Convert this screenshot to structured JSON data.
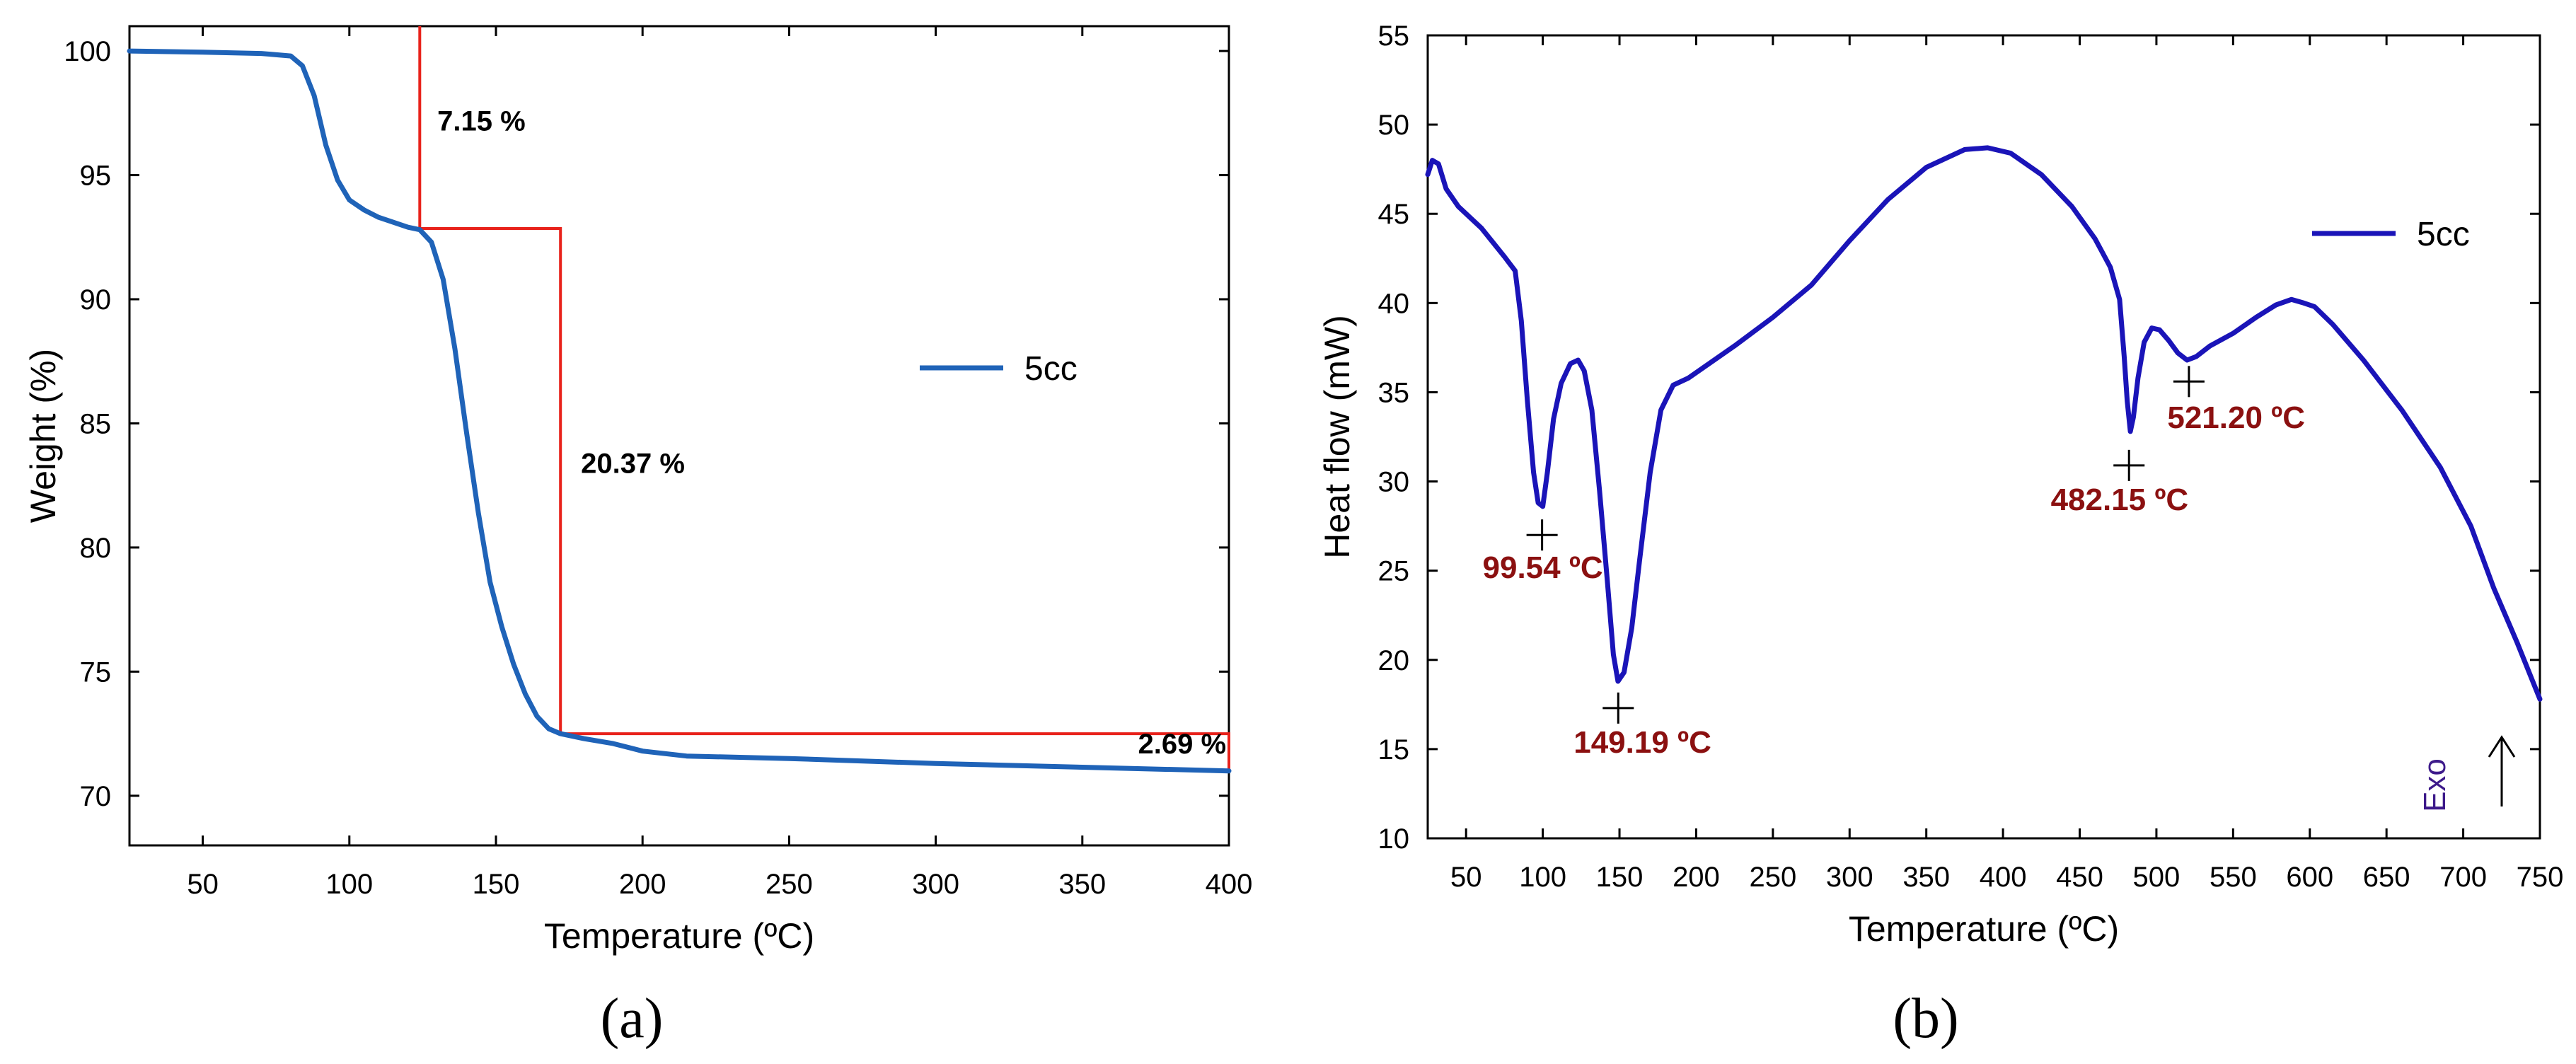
{
  "chart_data": [
    {
      "panel_label": "(a)",
      "type": "line",
      "xlabel": "Temperature (ºC)",
      "ylabel": "Weight (%)",
      "xlim": [
        25,
        400
      ],
      "ylim": [
        68,
        101
      ],
      "x_ticks": [
        50,
        100,
        150,
        200,
        250,
        300,
        350,
        400
      ],
      "y_ticks": [
        70,
        75,
        80,
        85,
        90,
        95,
        100
      ],
      "legend": {
        "label": "5cc",
        "position": "center-right",
        "color": "#1f63b8"
      },
      "series": [
        {
          "name": "5cc",
          "color": "#1f63b8",
          "points": [
            [
              25,
              100
            ],
            [
              50,
              99.95
            ],
            [
              70,
              99.9
            ],
            [
              80,
              99.8
            ],
            [
              84,
              99.4
            ],
            [
              88,
              98.2
            ],
            [
              92,
              96.2
            ],
            [
              96,
              94.8
            ],
            [
              100,
              94.0
            ],
            [
              105,
              93.6
            ],
            [
              110,
              93.3
            ],
            [
              115,
              93.1
            ],
            [
              120,
              92.9
            ],
            [
              124,
              92.8
            ],
            [
              128,
              92.3
            ],
            [
              132,
              90.8
            ],
            [
              136,
              88.0
            ],
            [
              140,
              84.6
            ],
            [
              144,
              81.4
            ],
            [
              148,
              78.6
            ],
            [
              152,
              76.8
            ],
            [
              156,
              75.3
            ],
            [
              160,
              74.1
            ],
            [
              164,
              73.2
            ],
            [
              168,
              72.7
            ],
            [
              172,
              72.5
            ],
            [
              180,
              72.3
            ],
            [
              190,
              72.1
            ],
            [
              200,
              71.8
            ],
            [
              215,
              71.6
            ],
            [
              250,
              71.5
            ],
            [
              300,
              71.3
            ],
            [
              350,
              71.15
            ],
            [
              400,
              71.0
            ]
          ]
        }
      ],
      "annotation_lines_color": "#e8221b",
      "annotations": [
        {
          "text": "7.15 %",
          "x": 130,
          "y": 96.8
        },
        {
          "text": "20.37 %",
          "x": 179,
          "y": 83.0
        },
        {
          "text": "2.69 %",
          "x": 369,
          "y": 71.7
        }
      ],
      "step_lines": [
        [
          [
            124,
            101
          ],
          [
            124,
            92.85
          ],
          [
            172,
            92.85
          ],
          [
            172,
            72.5
          ],
          [
            400,
            72.5
          ],
          [
            400,
            71.0
          ]
        ]
      ]
    },
    {
      "panel_label": "(b)",
      "type": "line",
      "xlabel": "Temperature (ºC)",
      "ylabel": "Heat flow (mW)",
      "xlim": [
        25,
        750
      ],
      "ylim": [
        10,
        55
      ],
      "x_ticks": [
        50,
        100,
        150,
        200,
        250,
        300,
        350,
        400,
        450,
        500,
        550,
        600,
        650,
        700,
        750
      ],
      "y_ticks": [
        10,
        15,
        20,
        25,
        30,
        35,
        40,
        45,
        50,
        55
      ],
      "legend": {
        "label": "5cc",
        "position": "top-right",
        "color": "#1a14b8"
      },
      "exo_label": "Exo",
      "exo_color": "#3d1a8a",
      "series": [
        {
          "name": "5cc",
          "color": "#1a14b8",
          "points": [
            [
              25,
              47.2
            ],
            [
              28,
              48.0
            ],
            [
              32,
              47.8
            ],
            [
              37,
              46.4
            ],
            [
              45,
              45.4
            ],
            [
              60,
              44.2
            ],
            [
              75,
              42.6
            ],
            [
              82,
              41.8
            ],
            [
              86,
              39.0
            ],
            [
              90,
              34.5
            ],
            [
              94,
              30.5
            ],
            [
              97,
              28.8
            ],
            [
              100,
              28.6
            ],
            [
              103,
              30.5
            ],
            [
              107,
              33.5
            ],
            [
              112,
              35.5
            ],
            [
              118,
              36.6
            ],
            [
              123,
              36.8
            ],
            [
              127,
              36.2
            ],
            [
              132,
              34.0
            ],
            [
              137,
              29.5
            ],
            [
              142,
              24.5
            ],
            [
              146,
              20.3
            ],
            [
              149,
              18.8
            ],
            [
              153,
              19.3
            ],
            [
              158,
              21.8
            ],
            [
              163,
              25.5
            ],
            [
              170,
              30.5
            ],
            [
              177,
              34.0
            ],
            [
              185,
              35.4
            ],
            [
              195,
              35.8
            ],
            [
              205,
              36.4
            ],
            [
              225,
              37.6
            ],
            [
              250,
              39.2
            ],
            [
              275,
              41.0
            ],
            [
              300,
              43.5
            ],
            [
              325,
              45.8
            ],
            [
              350,
              47.6
            ],
            [
              375,
              48.6
            ],
            [
              390,
              48.7
            ],
            [
              405,
              48.4
            ],
            [
              425,
              47.2
            ],
            [
              445,
              45.4
            ],
            [
              460,
              43.6
            ],
            [
              470,
              42.0
            ],
            [
              476,
              40.2
            ],
            [
              479,
              37.0
            ],
            [
              481,
              34.5
            ],
            [
              483,
              32.8
            ],
            [
              485,
              33.6
            ],
            [
              488,
              35.8
            ],
            [
              492,
              37.8
            ],
            [
              497,
              38.6
            ],
            [
              502,
              38.5
            ],
            [
              508,
              37.9
            ],
            [
              514,
              37.2
            ],
            [
              520,
              36.8
            ],
            [
              526,
              37.0
            ],
            [
              535,
              37.6
            ],
            [
              550,
              38.3
            ],
            [
              565,
              39.2
            ],
            [
              578,
              39.9
            ],
            [
              588,
              40.2
            ],
            [
              596,
              40.0
            ],
            [
              603,
              39.8
            ],
            [
              615,
              38.8
            ],
            [
              635,
              36.8
            ],
            [
              660,
              34.0
            ],
            [
              685,
              30.8
            ],
            [
              705,
              27.5
            ],
            [
              720,
              24.0
            ],
            [
              735,
              21.0
            ],
            [
              750,
              17.8
            ]
          ]
        }
      ],
      "annotation_color": "#8b1010",
      "peaks": [
        {
          "label": "99.54 ºC",
          "x": 99.54,
          "y": 27.0,
          "label_x": 100,
          "label_y": 24.6
        },
        {
          "label": "149.19 ºC",
          "x": 149.19,
          "y": 17.3,
          "label_x": 165,
          "label_y": 14.8
        },
        {
          "label": "482.15 ºC",
          "x": 482.15,
          "y": 30.9,
          "label_x": 476,
          "label_y": 28.4
        },
        {
          "label": "521.20 ºC",
          "x": 521.2,
          "y": 35.6,
          "label_x": 552,
          "label_y": 33.0
        }
      ]
    }
  ]
}
